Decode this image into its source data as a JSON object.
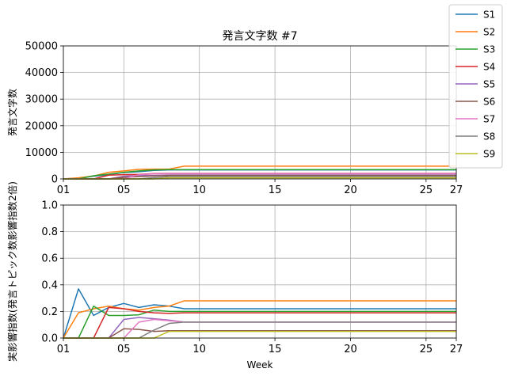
{
  "chart_data": [
    {
      "type": "line",
      "title": "発言文字数 #7",
      "xlabel": "",
      "ylabel": "発言文字数",
      "xlim": [
        1,
        27
      ],
      "ylim": [
        0,
        50000
      ],
      "xticks": [
        1,
        5,
        10,
        15,
        20,
        25,
        27
      ],
      "xtick_labels": [
        "01",
        "05",
        "10",
        "15",
        "20",
        "25",
        "27"
      ],
      "yticks": [
        0,
        10000,
        20000,
        30000,
        40000,
        50000
      ],
      "ytick_labels": [
        "0",
        "10000",
        "20000",
        "30000",
        "40000",
        "50000"
      ],
      "grid": true,
      "x": [
        1,
        2,
        3,
        4,
        5,
        6,
        7,
        8,
        9,
        10,
        11,
        12,
        13,
        14,
        15,
        16,
        17,
        18,
        19,
        20,
        21,
        22,
        23,
        24,
        25,
        26,
        27
      ],
      "series": [
        {
          "name": "S1",
          "color": "#1f77b4",
          "values": [
            0,
            300,
            1000,
            1600,
            2400,
            2700,
            3200,
            3400,
            3400,
            3400,
            3400,
            3400,
            3400,
            3400,
            3400,
            3400,
            3400,
            3400,
            3400,
            3400,
            3400,
            3400,
            3400,
            3400,
            3400,
            3400,
            3400
          ]
        },
        {
          "name": "S2",
          "color": "#ff7f0e",
          "values": [
            0,
            400,
            1100,
            2500,
            3000,
            3600,
            3700,
            3700,
            4800,
            4800,
            4800,
            4800,
            4800,
            4800,
            4800,
            4800,
            4800,
            4800,
            4800,
            4800,
            4800,
            4800,
            4800,
            4800,
            4800,
            4800,
            4800
          ]
        },
        {
          "name": "S3",
          "color": "#2ca02c",
          "values": [
            0,
            0,
            1200,
            1800,
            2500,
            3000,
            3400,
            3500,
            3500,
            3500,
            3500,
            3500,
            3500,
            3500,
            3500,
            3500,
            3500,
            3500,
            3500,
            3500,
            3500,
            3500,
            3500,
            3500,
            3500,
            3500,
            3500
          ]
        },
        {
          "name": "S4",
          "color": "#d62728",
          "values": [
            0,
            0,
            0,
            1400,
            1600,
            1700,
            2000,
            2100,
            2100,
            2100,
            2100,
            2100,
            2100,
            2100,
            2100,
            2100,
            2100,
            2100,
            2100,
            2100,
            2100,
            2100,
            2100,
            2100,
            2100,
            2100,
            2100
          ]
        },
        {
          "name": "S5",
          "color": "#9467bd",
          "values": [
            0,
            0,
            0,
            0,
            1000,
            1300,
            1300,
            1500,
            1500,
            1500,
            1500,
            1500,
            1500,
            1500,
            1500,
            1500,
            1500,
            1500,
            1500,
            1500,
            1500,
            1500,
            1500,
            1500,
            1500,
            1500,
            1500
          ]
        },
        {
          "name": "S6",
          "color": "#8c564b",
          "values": [
            0,
            0,
            0,
            0,
            600,
            900,
            1100,
            1300,
            1300,
            1300,
            1300,
            1300,
            1300,
            1300,
            1300,
            1300,
            1300,
            1300,
            1300,
            1300,
            1300,
            1300,
            1300,
            1300,
            1300,
            1300,
            1300
          ]
        },
        {
          "name": "S7",
          "color": "#e377c2",
          "values": [
            0,
            0,
            0,
            0,
            0,
            1600,
            1900,
            2000,
            2000,
            2000,
            2000,
            2000,
            2000,
            2000,
            2000,
            2000,
            2000,
            2000,
            2000,
            2000,
            2000,
            2000,
            2000,
            2000,
            2000,
            2000,
            2000
          ]
        },
        {
          "name": "S8",
          "color": "#7f7f7f",
          "values": [
            0,
            0,
            0,
            0,
            0,
            0,
            500,
            900,
            900,
            900,
            900,
            900,
            900,
            900,
            900,
            900,
            900,
            900,
            900,
            900,
            900,
            900,
            900,
            900,
            900,
            900,
            900
          ]
        },
        {
          "name": "S9",
          "color": "#bcbd22",
          "values": [
            0,
            0,
            0,
            0,
            0,
            0,
            0,
            400,
            400,
            400,
            400,
            400,
            400,
            400,
            400,
            400,
            400,
            400,
            400,
            400,
            400,
            400,
            400,
            400,
            400,
            400,
            400
          ]
        }
      ]
    },
    {
      "type": "line",
      "title": "",
      "xlabel": "Week",
      "ylabel": "実影響指数(発言トピック数影響指数2倍)",
      "xlim": [
        1,
        27
      ],
      "ylim": [
        0,
        1.0
      ],
      "xticks": [
        1,
        5,
        10,
        15,
        20,
        25,
        27
      ],
      "xtick_labels": [
        "01",
        "05",
        "10",
        "15",
        "20",
        "25",
        "27"
      ],
      "yticks": [
        0,
        0.2,
        0.4,
        0.6,
        0.8,
        1.0
      ],
      "ytick_labels": [
        "0.0",
        "0.2",
        "0.4",
        "0.6",
        "0.8",
        "1.0"
      ],
      "grid": true,
      "x": [
        1,
        2,
        3,
        4,
        5,
        6,
        7,
        8,
        9,
        10,
        11,
        12,
        13,
        14,
        15,
        16,
        17,
        18,
        19,
        20,
        21,
        22,
        23,
        24,
        25,
        26,
        27
      ],
      "series": [
        {
          "name": "S1",
          "color": "#1f77b4",
          "values": [
            0,
            0.37,
            0.17,
            0.23,
            0.26,
            0.23,
            0.25,
            0.24,
            0.22,
            0.22,
            0.22,
            0.22,
            0.22,
            0.22,
            0.22,
            0.22,
            0.22,
            0.22,
            0.22,
            0.22,
            0.22,
            0.22,
            0.22,
            0.22,
            0.22,
            0.22,
            0.22
          ]
        },
        {
          "name": "S2",
          "color": "#ff7f0e",
          "values": [
            0,
            0.19,
            0.22,
            0.24,
            0.22,
            0.21,
            0.23,
            0.24,
            0.28,
            0.28,
            0.28,
            0.28,
            0.28,
            0.28,
            0.28,
            0.28,
            0.28,
            0.28,
            0.28,
            0.28,
            0.28,
            0.28,
            0.28,
            0.28,
            0.28,
            0.28,
            0.28
          ]
        },
        {
          "name": "S3",
          "color": "#2ca02c",
          "values": [
            0,
            0,
            0.24,
            0.17,
            0.17,
            0.175,
            0.21,
            0.2,
            0.2,
            0.2,
            0.2,
            0.2,
            0.2,
            0.2,
            0.2,
            0.2,
            0.2,
            0.2,
            0.2,
            0.2,
            0.2,
            0.2,
            0.2,
            0.2,
            0.2,
            0.2,
            0.2
          ]
        },
        {
          "name": "S4",
          "color": "#d62728",
          "values": [
            0,
            0,
            0,
            0.23,
            0.22,
            0.2,
            0.19,
            0.185,
            0.19,
            0.19,
            0.19,
            0.19,
            0.19,
            0.19,
            0.19,
            0.19,
            0.19,
            0.19,
            0.19,
            0.19,
            0.19,
            0.19,
            0.19,
            0.19,
            0.19,
            0.19,
            0.19
          ]
        },
        {
          "name": "S5",
          "color": "#9467bd",
          "values": [
            0,
            0,
            0,
            0,
            0.14,
            0.155,
            0.145,
            0.135,
            0.12,
            0.12,
            0.12,
            0.12,
            0.12,
            0.12,
            0.12,
            0.12,
            0.12,
            0.12,
            0.12,
            0.12,
            0.12,
            0.12,
            0.12,
            0.12,
            0.12,
            0.12,
            0.12
          ]
        },
        {
          "name": "S6",
          "color": "#8c564b",
          "values": [
            0,
            0,
            0,
            0,
            0.07,
            0.065,
            0.05,
            0.055,
            0.055,
            0.055,
            0.055,
            0.055,
            0.055,
            0.055,
            0.055,
            0.055,
            0.055,
            0.055,
            0.055,
            0.055,
            0.055,
            0.055,
            0.055,
            0.055,
            0.055,
            0.055,
            0.055
          ]
        },
        {
          "name": "S7",
          "color": "#e377c2",
          "values": [
            0,
            0,
            0,
            0,
            0,
            0.12,
            0.14,
            0.13,
            0.12,
            0.12,
            0.12,
            0.12,
            0.12,
            0.12,
            0.12,
            0.12,
            0.12,
            0.12,
            0.12,
            0.12,
            0.12,
            0.12,
            0.12,
            0.12,
            0.12,
            0.12,
            0.12
          ]
        },
        {
          "name": "S8",
          "color": "#7f7f7f",
          "values": [
            0,
            0,
            0,
            0,
            0,
            0,
            0.06,
            0.11,
            0.12,
            0.12,
            0.12,
            0.12,
            0.12,
            0.12,
            0.12,
            0.12,
            0.12,
            0.12,
            0.12,
            0.12,
            0.12,
            0.12,
            0.12,
            0.12,
            0.12,
            0.12,
            0.12
          ]
        },
        {
          "name": "S9",
          "color": "#bcbd22",
          "values": [
            0,
            0,
            0,
            0,
            0,
            0,
            0,
            0.05,
            0.05,
            0.05,
            0.05,
            0.05,
            0.05,
            0.05,
            0.05,
            0.05,
            0.05,
            0.05,
            0.05,
            0.05,
            0.05,
            0.05,
            0.05,
            0.05,
            0.05,
            0.05,
            0.05
          ]
        }
      ]
    }
  ],
  "legend": {
    "placement": "top-right",
    "entries": [
      "S1",
      "S2",
      "S3",
      "S4",
      "S5",
      "S6",
      "S7",
      "S8",
      "S9"
    ]
  }
}
